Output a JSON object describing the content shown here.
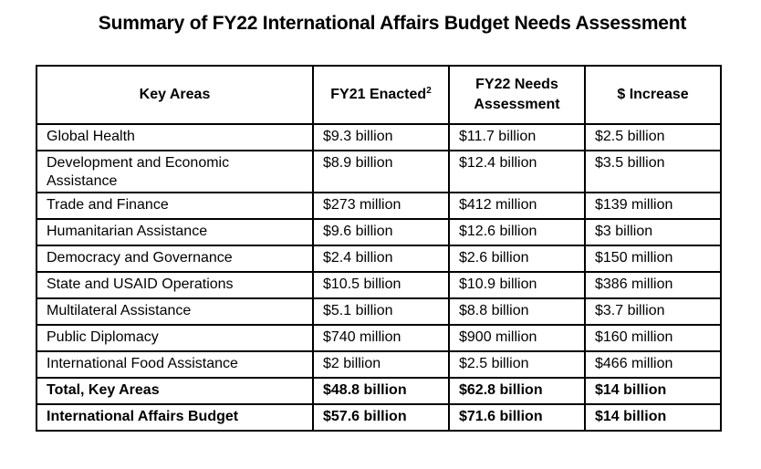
{
  "title": "Summary of FY22 International Affairs Budget Needs Assessment",
  "table": {
    "headers": {
      "key_areas": "Key Areas",
      "fy21": "FY21 Enacted",
      "fy21_footnote": "2",
      "fy22_line1": "FY22 Needs",
      "fy22_line2": "Assessment",
      "increase": "$ Increase"
    },
    "rows": [
      {
        "area": "Global Health",
        "fy21": "$9.3 billion",
        "fy22": "$11.7 billion",
        "increase": "$2.5 billion"
      },
      {
        "area": "Development and Economic Assistance",
        "fy21": "$8.9 billion",
        "fy22": "$12.4 billion",
        "increase": "$3.5 billion"
      },
      {
        "area": "Trade and Finance",
        "fy21": "$273 million",
        "fy22": "$412 million",
        "increase": "$139 million"
      },
      {
        "area": "Humanitarian Assistance",
        "fy21": "$9.6 billion",
        "fy22": "$12.6 billion",
        "increase": "$3 billion"
      },
      {
        "area": "Democracy and Governance",
        "fy21": "$2.4 billion",
        "fy22": "$2.6 billion",
        "increase": "$150 million"
      },
      {
        "area": "State and USAID Operations",
        "fy21": "$10.5 billion",
        "fy22": "$10.9 billion",
        "increase": "$386 million"
      },
      {
        "area": "Multilateral Assistance",
        "fy21": "$5.1 billion",
        "fy22": "$8.8 billion",
        "increase": "$3.7 billion"
      },
      {
        "area": "Public Diplomacy",
        "fy21": "$740 million",
        "fy22": "$900 million",
        "increase": "$160 million"
      },
      {
        "area": "International Food Assistance",
        "fy21": "$2 billion",
        "fy22": "$2.5 billion",
        "increase": "$466 million"
      },
      {
        "area": "Total, Key Areas",
        "fy21": "$48.8 billion",
        "fy22": "$62.8 billion",
        "increase": "$14 billion"
      },
      {
        "area": "International Affairs Budget",
        "fy21": "$57.6 billion",
        "fy22": "$71.6 billion",
        "increase": "$14 billion"
      }
    ]
  }
}
